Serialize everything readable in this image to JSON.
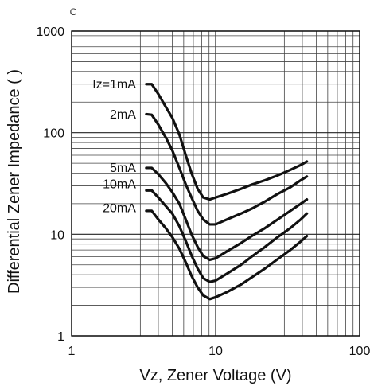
{
  "chart_data": {
    "type": "line",
    "title": "",
    "top_mark": "C",
    "xlabel": "Vz, Zener Voltage (V)",
    "ylabel": "Differential Zener Impedance (  )",
    "x_scale": "log",
    "y_scale": "log",
    "xlim": [
      1,
      100
    ],
    "ylim": [
      1,
      1000
    ],
    "x_ticks": [
      1,
      10,
      100
    ],
    "y_ticks": [
      1,
      10,
      100,
      1000
    ],
    "x_tick_labels": [
      "1",
      "10",
      "100"
    ],
    "y_tick_labels": [
      "1",
      "10",
      "100",
      "1000"
    ],
    "grid": true,
    "series": [
      {
        "name": "Iz=1mA",
        "x": [
          3.3,
          3.6,
          4.0,
          4.5,
          5.0,
          5.6,
          6.2,
          6.8,
          7.5,
          8.2,
          9.1,
          10,
          12,
          15,
          18,
          22,
          27,
          33,
          39,
          43
        ],
        "y": [
          300,
          300,
          240,
          180,
          140,
          96,
          60,
          40,
          28,
          23,
          22,
          23,
          25,
          28,
          31,
          34,
          38,
          43,
          48,
          52
        ]
      },
      {
        "name": "2mA",
        "x": [
          3.3,
          3.6,
          4.0,
          4.5,
          5.0,
          5.6,
          6.2,
          6.8,
          7.5,
          8.2,
          9.1,
          10,
          12,
          15,
          18,
          22,
          27,
          33,
          39,
          43
        ],
        "y": [
          152,
          150,
          120,
          90,
          67,
          45,
          31,
          23,
          17,
          14,
          12.5,
          12.5,
          14,
          16,
          18,
          21,
          25,
          29,
          34,
          37
        ]
      },
      {
        "name": "5mA",
        "x": [
          3.3,
          3.6,
          4.0,
          4.5,
          5.0,
          5.6,
          6.2,
          6.8,
          7.5,
          8.2,
          9.1,
          10,
          12,
          15,
          18,
          22,
          27,
          33,
          39,
          43
        ],
        "y": [
          45,
          45,
          39,
          32,
          26,
          20,
          14,
          10,
          7.5,
          6.1,
          5.6,
          5.8,
          6.8,
          8.2,
          9.7,
          11.5,
          14,
          17,
          20,
          22
        ]
      },
      {
        "name": "10mA",
        "x": [
          3.3,
          3.6,
          4.0,
          4.5,
          5.0,
          5.6,
          6.2,
          6.8,
          7.5,
          8.2,
          9.1,
          10,
          12,
          15,
          18,
          22,
          27,
          33,
          39,
          43
        ],
        "y": [
          27,
          27,
          23,
          19,
          16,
          12,
          8.6,
          6.2,
          4.6,
          3.7,
          3.4,
          3.5,
          4.1,
          5.0,
          6.1,
          7.5,
          9.4,
          11.5,
          14,
          16
        ]
      },
      {
        "name": "20mA",
        "x": [
          3.3,
          3.6,
          4.0,
          4.5,
          5.0,
          5.6,
          6.2,
          6.8,
          7.5,
          8.2,
          9.1,
          10,
          12,
          15,
          18,
          22,
          27,
          33,
          39,
          43
        ],
        "y": [
          17,
          17,
          14,
          11.5,
          9.4,
          7.2,
          5.3,
          3.9,
          3.0,
          2.5,
          2.3,
          2.4,
          2.7,
          3.2,
          3.8,
          4.6,
          5.7,
          7.0,
          8.5,
          9.6
        ]
      }
    ],
    "series_labels": [
      {
        "text": "Iz=1mA",
        "x": 3.1,
        "y": 300
      },
      {
        "text": "2mA",
        "x": 3.1,
        "y": 150
      },
      {
        "text": "5mA",
        "x": 3.1,
        "y": 45
      },
      {
        "text": "10mA",
        "x": 3.1,
        "y": 31
      },
      {
        "text": "20mA",
        "x": 3.1,
        "y": 18
      }
    ]
  }
}
